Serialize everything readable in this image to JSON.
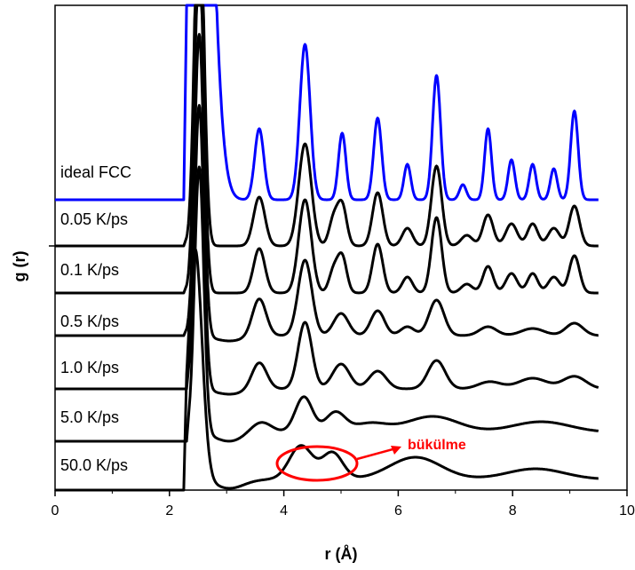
{
  "chart_data": {
    "type": "line",
    "xlabel": "r (Å)",
    "ylabel": "g (r)",
    "xlim": [
      0,
      10
    ],
    "x_ticks": [
      "0",
      "2",
      "4",
      "6",
      "8",
      "10"
    ],
    "grid": false,
    "legend": "inline labels left of each curve",
    "series": [
      {
        "name": "ideal FCC",
        "color": "#0000ff",
        "peaks": [
          [
            2.52,
            0.2,
            700
          ],
          [
            3.57,
            0.08,
            80
          ],
          [
            4.37,
            0.09,
            175
          ],
          [
            5.02,
            0.065,
            75
          ],
          [
            5.64,
            0.07,
            92
          ],
          [
            6.16,
            0.06,
            40
          ],
          [
            6.67,
            0.07,
            140
          ],
          [
            7.13,
            0.06,
            17
          ],
          [
            7.57,
            0.06,
            80
          ],
          [
            7.98,
            0.06,
            45
          ],
          [
            8.35,
            0.06,
            40
          ],
          [
            8.72,
            0.06,
            35
          ],
          [
            9.08,
            0.065,
            100
          ]
        ],
        "baseline_level": 0
      },
      {
        "name": "0.05 K/ps",
        "color": "#000000",
        "peaks": [
          [
            2.52,
            0.08,
            420
          ],
          [
            3.57,
            0.1,
            55
          ],
          [
            4.37,
            0.11,
            115
          ],
          [
            4.87,
            0.08,
            30
          ],
          [
            5.02,
            0.08,
            45
          ],
          [
            5.64,
            0.09,
            60
          ],
          [
            6.16,
            0.09,
            20
          ],
          [
            6.67,
            0.09,
            90
          ],
          [
            7.2,
            0.1,
            12
          ],
          [
            7.57,
            0.09,
            35
          ],
          [
            7.98,
            0.1,
            25
          ],
          [
            8.35,
            0.09,
            25
          ],
          [
            8.72,
            0.1,
            20
          ],
          [
            9.08,
            0.09,
            45
          ]
        ],
        "baseline_level": 4
      },
      {
        "name": "0.1 K/ps",
        "color": "#000000",
        "peaks": [
          [
            2.52,
            0.08,
            380
          ],
          [
            3.57,
            0.1,
            50
          ],
          [
            4.37,
            0.11,
            105
          ],
          [
            4.87,
            0.08,
            25
          ],
          [
            5.02,
            0.08,
            40
          ],
          [
            5.64,
            0.09,
            55
          ],
          [
            6.16,
            0.09,
            18
          ],
          [
            6.67,
            0.09,
            85
          ],
          [
            7.2,
            0.1,
            10
          ],
          [
            7.57,
            0.09,
            30
          ],
          [
            7.98,
            0.1,
            22
          ],
          [
            8.35,
            0.09,
            22
          ],
          [
            8.72,
            0.1,
            18
          ],
          [
            9.08,
            0.09,
            42
          ]
        ],
        "baseline_level": 3
      },
      {
        "name": "0.5 K/ps",
        "color": "#000000",
        "peaks": [
          [
            2.52,
            0.08,
            340
          ],
          [
            3.57,
            0.12,
            42
          ],
          [
            4.37,
            0.12,
            85
          ],
          [
            5.0,
            0.13,
            25
          ],
          [
            5.64,
            0.12,
            28
          ],
          [
            6.16,
            0.12,
            10
          ],
          [
            6.67,
            0.13,
            40
          ],
          [
            7.57,
            0.15,
            10
          ],
          [
            8.35,
            0.2,
            8
          ],
          [
            9.08,
            0.15,
            14
          ]
        ],
        "baseline_level": 2
      },
      {
        "name": "1.0 K/ps",
        "color": "#000000",
        "peaks": [
          [
            2.52,
            0.08,
            320
          ],
          [
            3.57,
            0.13,
            30
          ],
          [
            4.37,
            0.12,
            75
          ],
          [
            5.0,
            0.15,
            28
          ],
          [
            5.64,
            0.15,
            20
          ],
          [
            6.67,
            0.15,
            32
          ],
          [
            7.6,
            0.2,
            8
          ],
          [
            8.35,
            0.25,
            12
          ],
          [
            9.08,
            0.2,
            14
          ]
        ],
        "baseline_level": 1
      },
      {
        "name": "5.0 K/ps",
        "color": "#000000",
        "peaks": [
          [
            2.52,
            0.08,
            300
          ],
          [
            3.6,
            0.18,
            12
          ],
          [
            4.35,
            0.15,
            40
          ],
          [
            4.9,
            0.17,
            22
          ],
          [
            5.5,
            0.3,
            10
          ],
          [
            6.6,
            0.45,
            18
          ],
          [
            8.5,
            0.5,
            12
          ]
        ],
        "baseline_level": 0
      },
      {
        "name": "50.0 K/ps",
        "color": "#000000",
        "peaks": [
          [
            2.45,
            0.12,
            260
          ],
          [
            4.3,
            0.2,
            38
          ],
          [
            4.85,
            0.18,
            30
          ],
          [
            6.3,
            0.45,
            25
          ],
          [
            8.4,
            0.5,
            12
          ]
        ],
        "baseline_level": 0
      }
    ],
    "annotations": [
      {
        "text": "bükülme",
        "color": "#ff0000",
        "target_x": 4.5
      }
    ]
  }
}
